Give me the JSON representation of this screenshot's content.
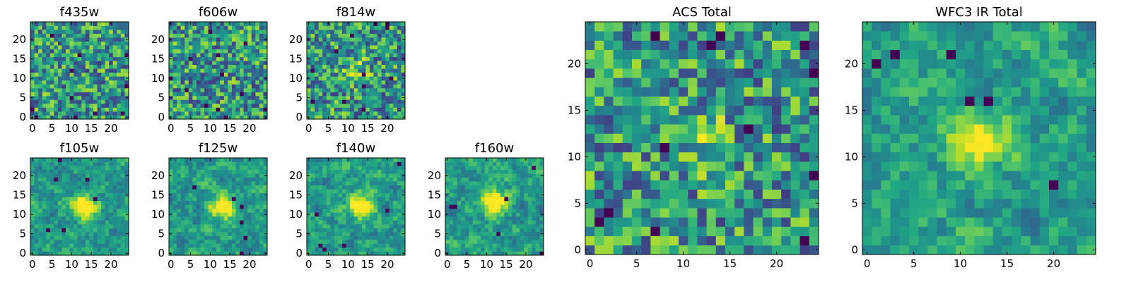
{
  "chart_data": [
    {
      "type": "heatmap",
      "title": "f435w",
      "colormap": "viridis",
      "grid": false,
      "size": [
        25,
        25
      ],
      "xlim": [
        0,
        24
      ],
      "ylim": [
        0,
        24
      ],
      "xticks": [
        0,
        5,
        10,
        15,
        20
      ],
      "yticks": [
        0,
        5,
        10,
        15,
        20
      ],
      "pattern": "noise"
    },
    {
      "type": "heatmap",
      "title": "f606w",
      "colormap": "viridis",
      "grid": false,
      "size": [
        25,
        25
      ],
      "xlim": [
        0,
        24
      ],
      "ylim": [
        0,
        24
      ],
      "xticks": [
        0,
        5,
        10,
        15,
        20
      ],
      "yticks": [
        0,
        5,
        10,
        15,
        20
      ],
      "pattern": "noise"
    },
    {
      "type": "heatmap",
      "title": "f814w",
      "colormap": "viridis",
      "grid": false,
      "size": [
        25,
        25
      ],
      "xlim": [
        0,
        24
      ],
      "ylim": [
        0,
        24
      ],
      "xticks": [
        0,
        5,
        10,
        15,
        20
      ],
      "yticks": [
        0,
        5,
        10,
        15,
        20
      ],
      "pattern": "noise-faint-source",
      "source_center": [
        12,
        12
      ]
    },
    {
      "type": "heatmap",
      "title": "f105w",
      "colormap": "viridis",
      "grid": false,
      "size": [
        25,
        25
      ],
      "xlim": [
        0,
        24
      ],
      "ylim": [
        0,
        24
      ],
      "xticks": [
        0,
        5,
        10,
        15,
        20
      ],
      "yticks": [
        0,
        5,
        10,
        15,
        20
      ],
      "pattern": "smooth-source",
      "source_center": [
        13,
        12
      ]
    },
    {
      "type": "heatmap",
      "title": "f125w",
      "colormap": "viridis",
      "grid": false,
      "size": [
        25,
        25
      ],
      "xlim": [
        0,
        24
      ],
      "ylim": [
        0,
        24
      ],
      "xticks": [
        0,
        5,
        10,
        15,
        20
      ],
      "yticks": [
        0,
        5,
        10,
        15,
        20
      ],
      "pattern": "smooth-source",
      "source_center": [
        13,
        12
      ]
    },
    {
      "type": "heatmap",
      "title": "f140w",
      "colormap": "viridis",
      "grid": false,
      "size": [
        25,
        25
      ],
      "xlim": [
        0,
        24
      ],
      "ylim": [
        0,
        24
      ],
      "xticks": [
        0,
        5,
        10,
        15,
        20
      ],
      "yticks": [
        0,
        5,
        10,
        15,
        20
      ],
      "pattern": "smooth-source",
      "source_center": [
        13,
        12
      ]
    },
    {
      "type": "heatmap",
      "title": "f160w",
      "colormap": "viridis",
      "grid": false,
      "size": [
        25,
        25
      ],
      "xlim": [
        0,
        24
      ],
      "ylim": [
        0,
        24
      ],
      "xticks": [
        0,
        5,
        10,
        15,
        20
      ],
      "yticks": [
        0,
        5,
        10,
        15,
        20
      ],
      "pattern": "smooth-source",
      "source_center": [
        12,
        13
      ]
    },
    {
      "type": "heatmap",
      "title": "ACS Total",
      "colormap": "viridis",
      "grid": false,
      "size": [
        25,
        25
      ],
      "xlim": [
        0,
        24
      ],
      "ylim": [
        0,
        24
      ],
      "xticks": [
        0,
        5,
        10,
        15,
        20
      ],
      "yticks": [
        0,
        5,
        10,
        15,
        20
      ],
      "pattern": "noise-faint-source",
      "source_center": [
        12,
        12
      ]
    },
    {
      "type": "heatmap",
      "title": "WFC3 IR Total",
      "colormap": "viridis",
      "grid": false,
      "size": [
        25,
        25
      ],
      "xlim": [
        0,
        24
      ],
      "ylim": [
        0,
        24
      ],
      "xticks": [
        0,
        5,
        10,
        15,
        20
      ],
      "yticks": [
        0,
        5,
        10,
        15,
        20
      ],
      "pattern": "smooth-source",
      "source_center": [
        12,
        12
      ]
    }
  ]
}
